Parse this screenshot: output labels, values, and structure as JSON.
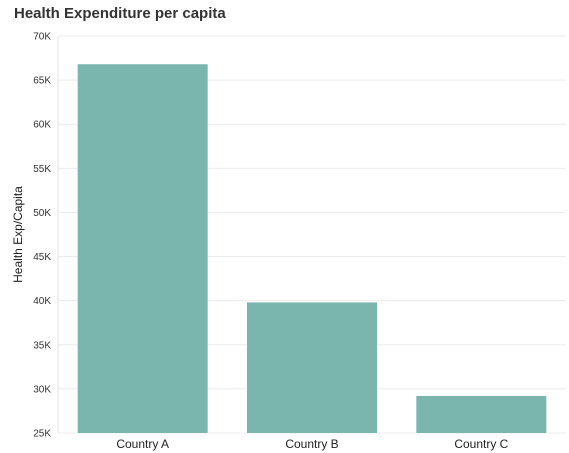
{
  "chart_data": {
    "type": "bar",
    "title": "Health Expenditure per capita",
    "xlabel": "",
    "ylabel": "Health Exp/Capita",
    "categories": [
      "Country A",
      "Country B",
      "Country C"
    ],
    "values": [
      66800,
      39800,
      29200
    ],
    "ylim": [
      25000,
      70000
    ],
    "yticks": [
      25000,
      30000,
      35000,
      40000,
      45000,
      50000,
      55000,
      60000,
      65000,
      70000
    ],
    "ytick_labels": [
      "25K",
      "30K",
      "35K",
      "40K",
      "45K",
      "50K",
      "55K",
      "60K",
      "65K",
      "70K"
    ],
    "grid": true,
    "bar_color": "#7ab5ae",
    "grid_color": "#ececec"
  }
}
